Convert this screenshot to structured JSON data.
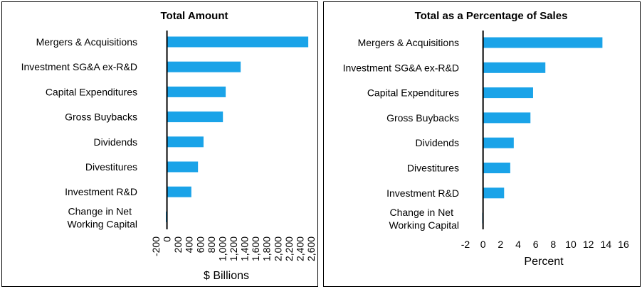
{
  "chart_data": [
    {
      "type": "bar",
      "orientation": "horizontal",
      "title": "Total Amount",
      "xlabel": "$ Billions",
      "ylabel": "",
      "categories": [
        "Mergers & Acquisitions",
        "Investment SG&A ex-R&D",
        "Capital Expenditures",
        "Gross Buybacks",
        "Dividends",
        "Divestitures",
        "Investment R&D",
        "Change in Net Working Capital"
      ],
      "category_lines": [
        [
          "Mergers & Acquisitions"
        ],
        [
          "Investment SG&A ex-R&D"
        ],
        [
          "Capital Expenditures"
        ],
        [
          "Gross Buybacks"
        ],
        [
          "Dividends"
        ],
        [
          "Divestitures"
        ],
        [
          "Investment R&D"
        ],
        [
          "Change in Net",
          "Working Capital"
        ]
      ],
      "values": [
        2550,
        1330,
        1060,
        1010,
        660,
        560,
        440,
        -20
      ],
      "xlim": [
        -200,
        2600
      ],
      "xticks": [
        -200,
        0,
        200,
        400,
        600,
        800,
        1000,
        1200,
        1400,
        1600,
        1800,
        2000,
        2200,
        2400,
        2600
      ],
      "xtick_labels": [
        "-200",
        "0",
        "200",
        "400",
        "600",
        "800",
        "1,000",
        "1,200",
        "1,400",
        "1,600",
        "1,800",
        "2,000",
        "2,200",
        "2,400",
        "2,600"
      ],
      "bar_color": "#1aa3e8"
    },
    {
      "type": "bar",
      "orientation": "horizontal",
      "title": "Total as a Percentage of Sales",
      "xlabel": "Percent",
      "ylabel": "",
      "categories": [
        "Mergers & Acquisitions",
        "Investment SG&A ex-R&D",
        "Capital Expenditures",
        "Gross Buybacks",
        "Dividends",
        "Divestitures",
        "Investment R&D",
        "Change in Net Working Capital"
      ],
      "category_lines": [
        [
          "Mergers & Acquisitions"
        ],
        [
          "Investment SG&A ex-R&D"
        ],
        [
          "Capital Expenditures"
        ],
        [
          "Gross Buybacks"
        ],
        [
          "Dividends"
        ],
        [
          "Divestitures"
        ],
        [
          "Investment R&D"
        ],
        [
          "Change in Net",
          "Working Capital"
        ]
      ],
      "values": [
        13.6,
        7.1,
        5.7,
        5.4,
        3.5,
        3.1,
        2.4,
        -0.1
      ],
      "xlim": [
        -2,
        16
      ],
      "xticks": [
        -2,
        0,
        2,
        4,
        6,
        8,
        10,
        12,
        14,
        16
      ],
      "xtick_labels": [
        "-2",
        "0",
        "2",
        "4",
        "6",
        "8",
        "10",
        "12",
        "14",
        "16"
      ],
      "bar_color": "#1aa3e8"
    }
  ]
}
